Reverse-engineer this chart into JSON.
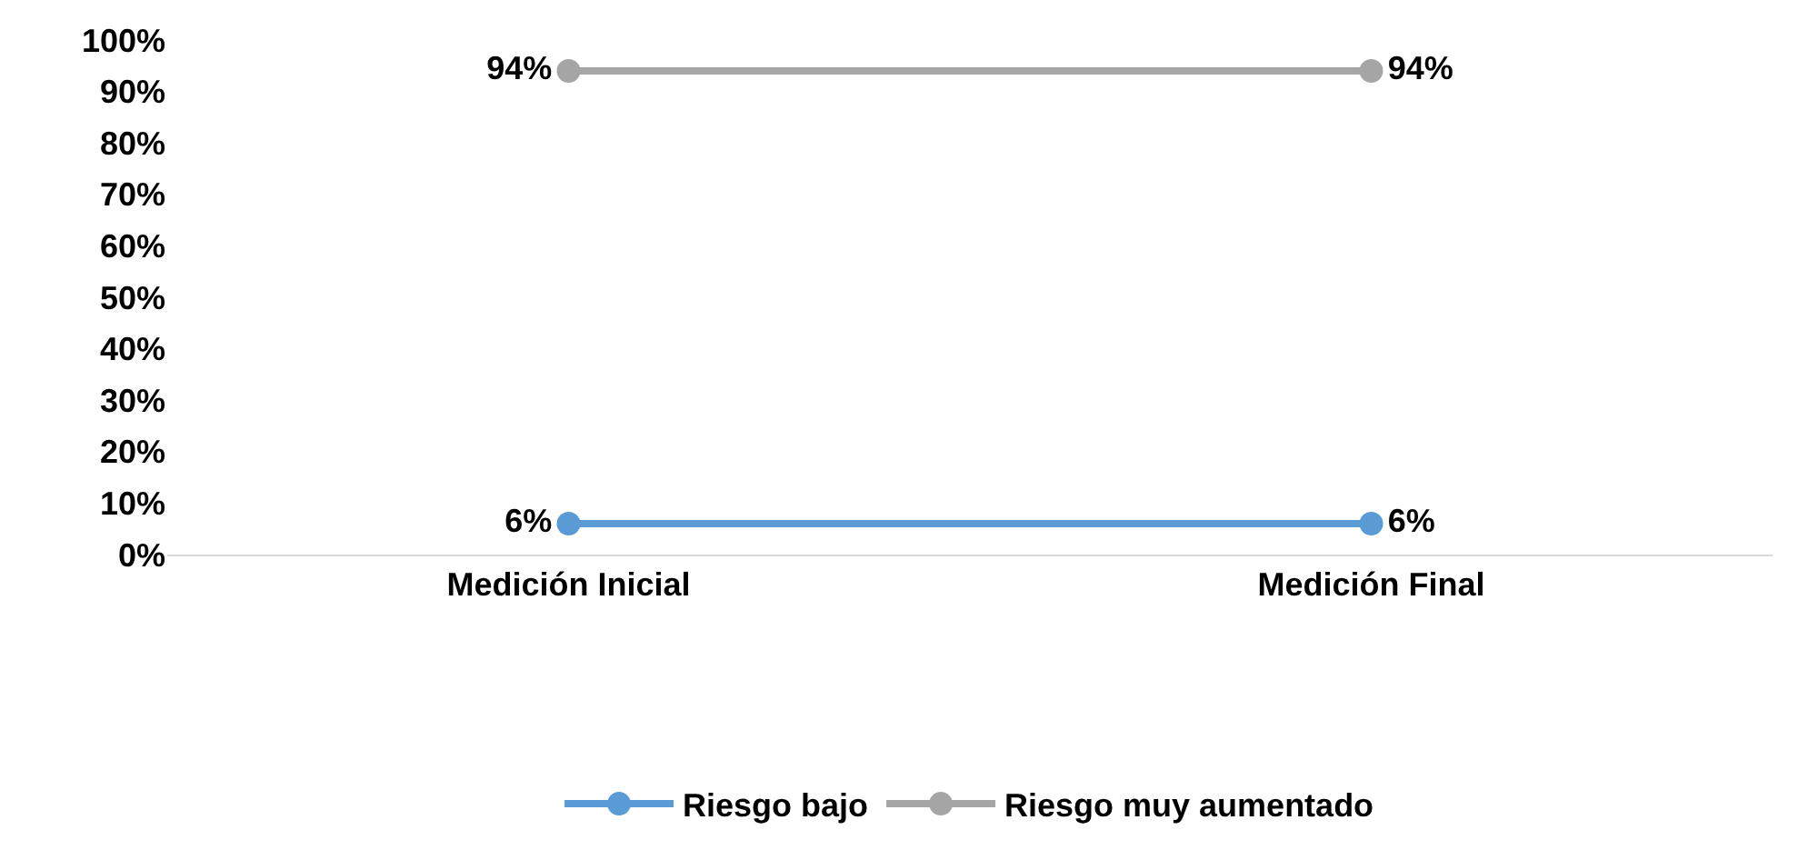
{
  "chart_data": {
    "type": "line",
    "categories": [
      "Medición Inicial",
      "Medición Final"
    ],
    "series": [
      {
        "name": "Riesgo bajo",
        "color": "#5b9bd5",
        "values": [
          6,
          6
        ],
        "value_labels": [
          "6%",
          "6%"
        ]
      },
      {
        "name": "Riesgo muy aumentado",
        "color": "#a5a5a5",
        "values": [
          94,
          94
        ],
        "value_labels": [
          "94%",
          "94%"
        ]
      }
    ],
    "ylim": [
      0,
      100
    ],
    "yticks": [
      {
        "value": 0,
        "label": "0%"
      },
      {
        "value": 10,
        "label": "10%"
      },
      {
        "value": 20,
        "label": "20%"
      },
      {
        "value": 30,
        "label": "30%"
      },
      {
        "value": 40,
        "label": "40%"
      },
      {
        "value": 50,
        "label": "50%"
      },
      {
        "value": 60,
        "label": "60%"
      },
      {
        "value": 70,
        "label": "70%"
      },
      {
        "value": 80,
        "label": "80%"
      },
      {
        "value": 90,
        "label": "90%"
      },
      {
        "value": 100,
        "label": "100%"
      }
    ],
    "legend": "bottom",
    "marker": "circle",
    "line_style": "solid"
  }
}
